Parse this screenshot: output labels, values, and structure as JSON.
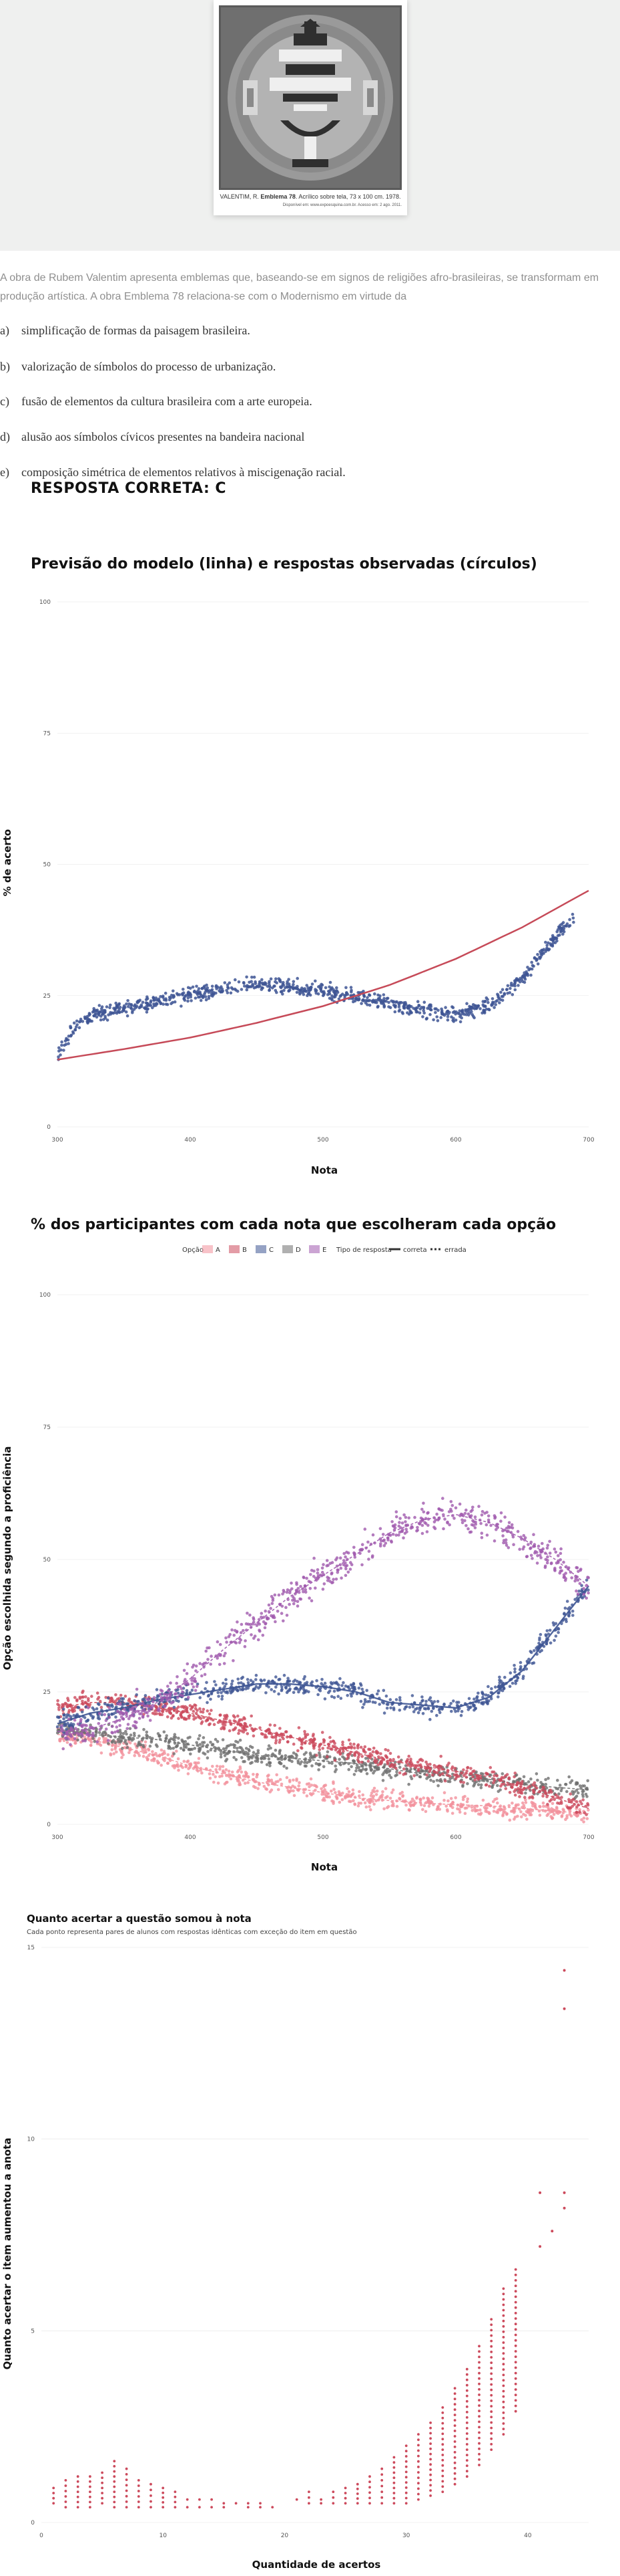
{
  "artwork": {
    "caption_author": "VALENTIM, R.",
    "caption_title": "Emblema 78",
    "caption_rest": ". Acrílico sobre tela, 73 x 100 cm. 1978.",
    "caption_source": "Disponível em: www.expoesquina.com.br. Acesso em: 2 ago. 2011."
  },
  "question": {
    "stem": "A obra de Rubem Valentim apresenta emblemas que, baseando-se em signos de religiões afro-brasileiras, se transformam em produção artística. A obra Emblema 78 relaciona-se com o Modernismo em virtude da",
    "options": [
      {
        "letter": "a)",
        "text": "simplificação de formas da paisagem brasileira."
      },
      {
        "letter": "b)",
        "text": "valorização de símbolos do processo de urbanização."
      },
      {
        "letter": "c)",
        "text": "fusão de elementos da cultura brasileira com a arte europeia."
      },
      {
        "letter": "d)",
        "text": "alusão aos símbolos cívicos presentes na bandeira nacional"
      },
      {
        "letter": "e)",
        "text": "composição simétrica de elementos relativos à miscigenação racial."
      }
    ],
    "answer_label": "RESPOSTA CORRETA: C"
  },
  "colors": {
    "blue": "#3e5594",
    "red": "#cc4a5c",
    "purple": "#a05aae",
    "gray": "#6f6f6f",
    "pink": "#f2919c",
    "model": "#c64a58",
    "grid": "#e4e4e4",
    "text": "#111111"
  },
  "chart_data": [
    {
      "id": "chart1",
      "type": "scatter",
      "title": "Previsão do modelo (linha) e respostas observadas (círculos)",
      "xlabel": "Nota",
      "ylabel": "% de acerto",
      "xlim": [
        300,
        700
      ],
      "ylim": [
        0,
        100
      ],
      "x_ticks": [
        300,
        400,
        500,
        600,
        700
      ],
      "x_tick_labels": [
        "300",
        "400",
        "500",
        "600",
        "700"
      ],
      "y_ticks": [
        0,
        25,
        50,
        75,
        100
      ],
      "y_tick_labels": [
        "0",
        "25",
        "50",
        "75",
        "100"
      ],
      "x": [
        301,
        310,
        320,
        330,
        340,
        350,
        360,
        370,
        380,
        390,
        400,
        410,
        420,
        430,
        440,
        450,
        460,
        470,
        480,
        490,
        500,
        510,
        520,
        530,
        540,
        550,
        560,
        570,
        580,
        590,
        600,
        610,
        620,
        630,
        640,
        650,
        660,
        670,
        680,
        690
      ],
      "observed": [
        14,
        18,
        20.5,
        21.5,
        22,
        22.5,
        23,
        23.5,
        24,
        24.5,
        25,
        25.5,
        26,
        26.5,
        27,
        27.2,
        27,
        26.8,
        26.5,
        26.2,
        26,
        25.5,
        25,
        24.5,
        24,
        23.5,
        23,
        22.5,
        22,
        21.5,
        21.5,
        22,
        22.5,
        24,
        26,
        28.5,
        31.5,
        34.5,
        37.5,
        40
      ],
      "model_x": [
        300,
        350,
        400,
        450,
        500,
        550,
        600,
        650,
        700
      ],
      "model": [
        12.8,
        14.8,
        17,
        19.8,
        23,
        27,
        32,
        38,
        45
      ]
    },
    {
      "id": "chart2",
      "type": "scatter",
      "title": "% dos participantes com cada nota que escolheram cada opção",
      "xlabel": "Nota",
      "ylabel": "Opção escolhida segundo a proficiência",
      "xlim": [
        300,
        700
      ],
      "ylim": [
        0,
        100
      ],
      "x_ticks": [
        300,
        400,
        500,
        600,
        700
      ],
      "x_tick_labels": [
        "300",
        "400",
        "500",
        "600",
        "700"
      ],
      "y_ticks": [
        0,
        25,
        50,
        75,
        100
      ],
      "y_tick_labels": [
        "0",
        "25",
        "50",
        "75",
        "100"
      ],
      "legend_title": "Opção",
      "legend_type_title": "Tipo de resposta",
      "legend_correct": "correta",
      "legend_wrong": "errada",
      "x": [
        300,
        325,
        350,
        375,
        400,
        425,
        450,
        475,
        500,
        525,
        550,
        575,
        600,
        625,
        650,
        675,
        700
      ],
      "series": [
        {
          "name": "A",
          "color_key": "pink",
          "values": [
            17,
            16,
            14.5,
            13,
            11,
            9.5,
            8,
            7,
            6,
            5,
            4.5,
            4,
            3.7,
            3.5,
            3,
            2.5,
            2
          ]
        },
        {
          "name": "B",
          "color_key": "red",
          "values": [
            22,
            23,
            23,
            22,
            21,
            19.5,
            18,
            16.5,
            15,
            13.5,
            12,
            11,
            10,
            9,
            7,
            5,
            3
          ]
        },
        {
          "name": "C",
          "color_key": "blue",
          "values": [
            19,
            21,
            22,
            23.5,
            24.5,
            25.5,
            26.5,
            26.5,
            26,
            25,
            23,
            22.5,
            22,
            24,
            29,
            37,
            45
          ]
        },
        {
          "name": "D",
          "color_key": "gray",
          "values": [
            18,
            17,
            16.5,
            16,
            15,
            14,
            13,
            12.5,
            12,
            11.5,
            10.5,
            9.5,
            9,
            8.5,
            7.5,
            7,
            6.5
          ]
        },
        {
          "name": "E",
          "color_key": "purple",
          "values": [
            17.5,
            18,
            20,
            23,
            27.5,
            33,
            38,
            43,
            47,
            51,
            55,
            57.5,
            58.5,
            57,
            54,
            50,
            45
          ]
        }
      ]
    },
    {
      "id": "chart3",
      "type": "scatter",
      "title": "Quanto acertar a questão somou à nota",
      "subtitle": "Cada ponto representa pares de alunos com respostas idênticas com exceção do item em questão",
      "xlabel": "Quantidade de acertos",
      "ylabel": "Quanto acertar o item aumentou a anota",
      "xlim": [
        0,
        45
      ],
      "ylim": [
        0,
        15
      ],
      "x_ticks": [
        0,
        10,
        20,
        30,
        40
      ],
      "x_tick_labels": [
        "0",
        "10",
        "20",
        "30",
        "40"
      ],
      "y_ticks": [
        0,
        5,
        10,
        15
      ],
      "y_tick_labels": [
        "0",
        "5",
        "10",
        "15"
      ],
      "columns": [
        {
          "x": 1,
          "min": 0.5,
          "max": 0.9
        },
        {
          "x": 2,
          "min": 0.4,
          "max": 1.1
        },
        {
          "x": 3,
          "min": 0.4,
          "max": 1.2
        },
        {
          "x": 4,
          "min": 0.4,
          "max": 1.2
        },
        {
          "x": 5,
          "min": 0.5,
          "max": 1.3
        },
        {
          "x": 6,
          "min": 0.4,
          "max": 1.6
        },
        {
          "x": 7,
          "min": 0.4,
          "max": 1.4
        },
        {
          "x": 8,
          "min": 0.4,
          "max": 1.1
        },
        {
          "x": 9,
          "min": 0.4,
          "max": 1.0
        },
        {
          "x": 10,
          "min": 0.4,
          "max": 0.9
        },
        {
          "x": 11,
          "min": 0.4,
          "max": 0.8
        },
        {
          "x": 12,
          "min": 0.4,
          "max": 0.6
        },
        {
          "x": 13,
          "min": 0.4,
          "max": 0.6
        },
        {
          "x": 14,
          "min": 0.4,
          "max": 0.6
        },
        {
          "x": 15,
          "min": 0.4,
          "max": 0.5
        },
        {
          "x": 16,
          "min": 0.5,
          "max": 0.5
        },
        {
          "x": 17,
          "min": 0.4,
          "max": 0.5
        },
        {
          "x": 18,
          "min": 0.4,
          "max": 0.5
        },
        {
          "x": 19,
          "min": 0.4,
          "max": 0.4
        },
        {
          "x": 21,
          "min": 0.6,
          "max": 0.6
        },
        {
          "x": 22,
          "min": 0.5,
          "max": 0.8
        },
        {
          "x": 23,
          "min": 0.5,
          "max": 0.6
        },
        {
          "x": 24,
          "min": 0.5,
          "max": 0.8
        },
        {
          "x": 25,
          "min": 0.5,
          "max": 0.9
        },
        {
          "x": 26,
          "min": 0.5,
          "max": 1.0
        },
        {
          "x": 27,
          "min": 0.5,
          "max": 1.2
        },
        {
          "x": 28,
          "min": 0.5,
          "max": 1.4
        },
        {
          "x": 29,
          "min": 0.5,
          "max": 1.7
        },
        {
          "x": 30,
          "min": 0.5,
          "max": 2.0
        },
        {
          "x": 31,
          "min": 0.6,
          "max": 2.3
        },
        {
          "x": 32,
          "min": 0.7,
          "max": 2.6
        },
        {
          "x": 33,
          "min": 0.8,
          "max": 3.0
        },
        {
          "x": 34,
          "min": 1.0,
          "max": 3.5
        },
        {
          "x": 35,
          "min": 1.2,
          "max": 4.0
        },
        {
          "x": 36,
          "min": 1.5,
          "max": 4.6
        },
        {
          "x": 37,
          "min": 1.9,
          "max": 5.3
        },
        {
          "x": 38,
          "min": 2.3,
          "max": 6.1
        },
        {
          "x": 39,
          "min": 2.9,
          "max": 6.6
        }
      ],
      "outliers": [
        {
          "x": 41,
          "y": 7.2
        },
        {
          "x": 41,
          "y": 8.6
        },
        {
          "x": 42,
          "y": 7.6
        },
        {
          "x": 43,
          "y": 8.2
        },
        {
          "x": 43,
          "y": 8.6
        },
        {
          "x": 43,
          "y": 13.4
        },
        {
          "x": 43,
          "y": 14.4
        }
      ]
    }
  ]
}
